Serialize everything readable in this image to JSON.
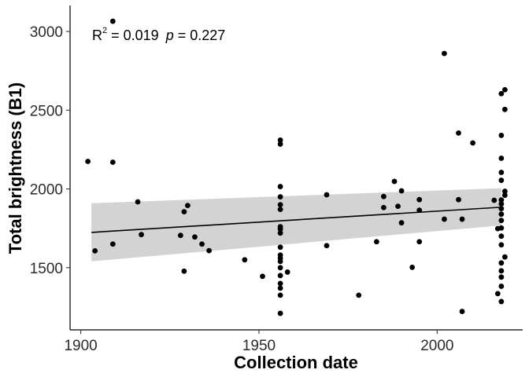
{
  "chart_data": {
    "type": "scatter",
    "title": "",
    "xlabel": "Collection date",
    "ylabel": "Total brightness (B1)",
    "xlim": [
      1897,
      2024
    ],
    "ylim": [
      1105,
      3165
    ],
    "x_ticks": [
      1900,
      1950,
      2000
    ],
    "y_ticks": [
      1500,
      2000,
      2500,
      3000
    ],
    "grid": false,
    "annotation": {
      "r2_prefix": "R",
      "r2_exp": "2",
      "r2_text": " = 0.019",
      "p_label": "p",
      "p_text": " = 0.227"
    },
    "regression": {
      "x": [
        1903,
        2018
      ],
      "y": [
        1724,
        1884
      ],
      "ci_lower": [
        1540,
        1768
      ],
      "ci_upper": [
        1909,
        2005
      ],
      "ci_color": "#d3d3d3",
      "line_color": "#000000"
    },
    "point_color": "#000000",
    "points": [
      [
        1902,
        2175
      ],
      [
        1904,
        1607
      ],
      [
        1909,
        3065
      ],
      [
        1909,
        2170
      ],
      [
        1909,
        1650
      ],
      [
        1916,
        1918
      ],
      [
        1917,
        1710
      ],
      [
        1928,
        1705
      ],
      [
        1929,
        1855
      ],
      [
        1929,
        1478
      ],
      [
        1930,
        1895
      ],
      [
        1932,
        1695
      ],
      [
        1934,
        1650
      ],
      [
        1936,
        1608
      ],
      [
        1946,
        1550
      ],
      [
        1951,
        1445
      ],
      [
        1956,
        2310
      ],
      [
        1956,
        2285
      ],
      [
        1956,
        2015
      ],
      [
        1956,
        1950
      ],
      [
        1956,
        1900
      ],
      [
        1956,
        1870
      ],
      [
        1956,
        1760
      ],
      [
        1956,
        1745
      ],
      [
        1956,
        1720
      ],
      [
        1956,
        1630
      ],
      [
        1956,
        1580
      ],
      [
        1956,
        1560
      ],
      [
        1956,
        1540
      ],
      [
        1956,
        1500
      ],
      [
        1956,
        1450
      ],
      [
        1956,
        1400
      ],
      [
        1956,
        1370
      ],
      [
        1956,
        1325
      ],
      [
        1956,
        1210
      ],
      [
        1958,
        1472
      ],
      [
        1969,
        1963
      ],
      [
        1969,
        1640
      ],
      [
        1978,
        1325
      ],
      [
        1983,
        1665
      ],
      [
        1985,
        1952
      ],
      [
        1985,
        1882
      ],
      [
        1988,
        2048
      ],
      [
        1989,
        1890
      ],
      [
        1990,
        1988
      ],
      [
        1990,
        1785
      ],
      [
        1993,
        1502
      ],
      [
        1995,
        1932
      ],
      [
        1995,
        1865
      ],
      [
        1995,
        1665
      ],
      [
        2002,
        2860
      ],
      [
        2002,
        1808
      ],
      [
        2006,
        2355
      ],
      [
        2006,
        1932
      ],
      [
        2007,
        1808
      ],
      [
        2007,
        1222
      ],
      [
        2010,
        2292
      ],
      [
        2016,
        1928
      ],
      [
        2017,
        1748
      ],
      [
        2017,
        1335
      ],
      [
        2018,
        2605
      ],
      [
        2018,
        2340
      ],
      [
        2018,
        2195
      ],
      [
        2018,
        2105
      ],
      [
        2018,
        2055
      ],
      [
        2018,
        1930
      ],
      [
        2018,
        1905
      ],
      [
        2018,
        1875
      ],
      [
        2018,
        1840
      ],
      [
        2018,
        1800
      ],
      [
        2018,
        1752
      ],
      [
        2018,
        1700
      ],
      [
        2018,
        1645
      ],
      [
        2018,
        1530
      ],
      [
        2018,
        1480
      ],
      [
        2018,
        1440
      ],
      [
        2018,
        1382
      ],
      [
        2018,
        1285
      ],
      [
        2019,
        2630
      ],
      [
        2019,
        2505
      ],
      [
        2019,
        1985
      ],
      [
        2019,
        1960
      ],
      [
        2019,
        1568
      ]
    ]
  }
}
